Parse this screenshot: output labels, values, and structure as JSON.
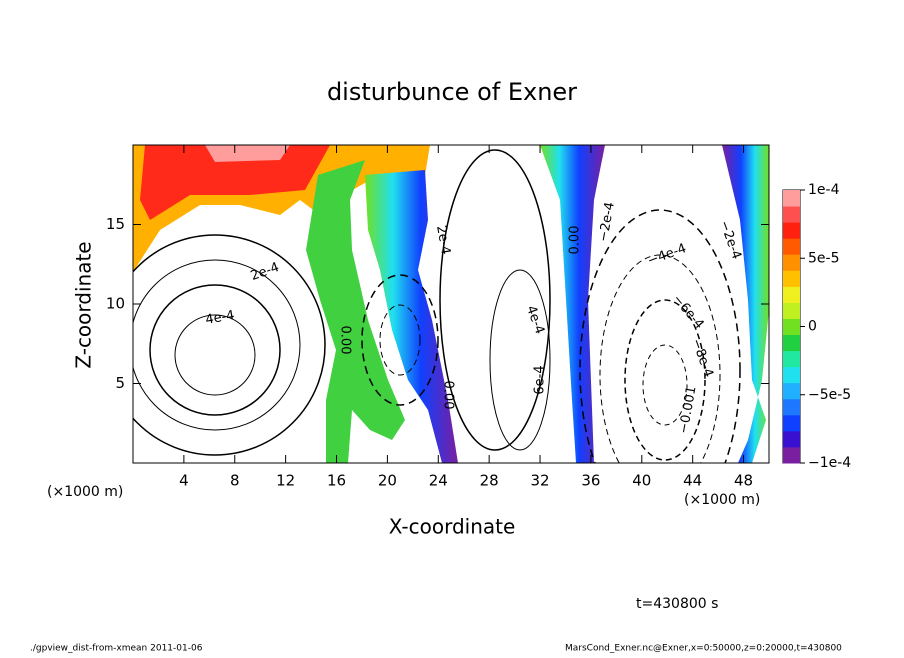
{
  "chart_data": {
    "type": "contour",
    "title": "disturbunce of Exner",
    "xlabel": "X-coordinate",
    "ylabel": "Z-coordinate",
    "xunit_left": "(×1000 m)",
    "xunit_right": "(×1000 m)",
    "xlim": [
      0,
      50
    ],
    "xticks": [
      4,
      8,
      12,
      16,
      20,
      24,
      28,
      32,
      36,
      40,
      44,
      48
    ],
    "ylim": [
      0,
      20
    ],
    "yticks": [
      5,
      10,
      15
    ],
    "clim": [
      -0.0001,
      0.0001
    ],
    "cticks": [
      {
        "value": -0.0001,
        "label": "−1e-4"
      },
      {
        "value": -5e-05,
        "label": "−5e-5"
      },
      {
        "value": 0,
        "label": "0"
      },
      {
        "value": 5e-05,
        "label": "5e-5"
      },
      {
        "value": 0.0001,
        "label": "1e-4"
      }
    ],
    "colors": [
      "#7a1fa0",
      "#3a10d0",
      "#1040ff",
      "#1e78ff",
      "#20b0ff",
      "#20e0f0",
      "#20e8a0",
      "#20d040",
      "#70e020",
      "#c0f020",
      "#f0f020",
      "#ffc000",
      "#ff9000",
      "#ff5a00",
      "#ff2010",
      "#ff5050",
      "#ff9c9c"
    ],
    "contour_labels": [
      "2e-4",
      "4e-4",
      "0.00",
      "2e-4",
      "0.00",
      "4e-4",
      "6e-4",
      "0.00",
      "−2e-4",
      "−4e-4",
      "−6e-4",
      "−8e-4",
      "−0.001",
      "−2e-4"
    ],
    "time_label": "t=430800 s",
    "footer_left": "./gpview_dist-from-xmean  2011-01-06",
    "footer_right": "MarsCond_Exner.nc@Exner,x=0:50000,z=0:20000,t=430800"
  }
}
